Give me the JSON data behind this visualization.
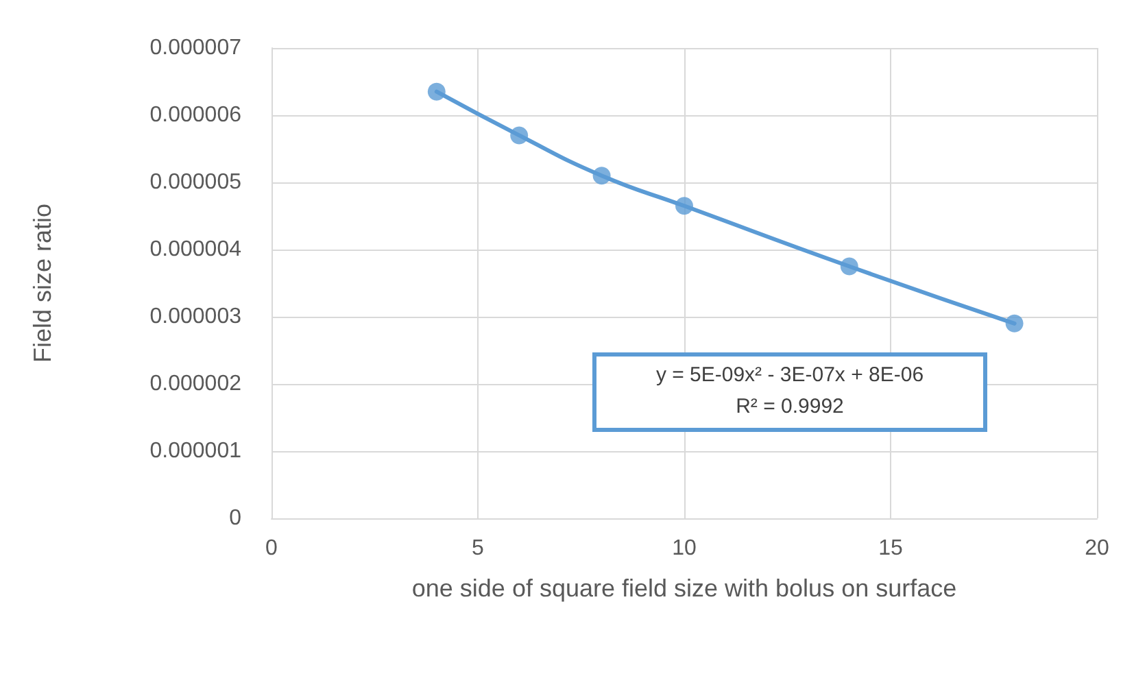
{
  "chart_data": {
    "type": "scatter",
    "xlabel": "one side of square field size with bolus on surface",
    "ylabel": "Field size ratio",
    "series": [
      {
        "type": "line",
        "color": "#5b9bd5",
        "x": [
          4,
          6,
          8,
          10,
          14,
          18
        ],
        "values": [
          6.35e-06,
          5.7e-06,
          5.1e-06,
          4.65e-06,
          3.75e-06,
          2.9e-06
        ],
        "marker": "none"
      },
      {
        "color": "#5b9bd5",
        "x": [
          4,
          6,
          8,
          10,
          14,
          18
        ],
        "values": [
          6.35e-06,
          5.7e-06,
          5.1e-06,
          4.65e-06,
          3.75e-06,
          2.9e-06
        ],
        "marker": "circle"
      }
    ],
    "xlim": [
      0,
      20
    ],
    "xticks": [
      0,
      5,
      10,
      15,
      20
    ],
    "ylim": [
      0,
      7e-06
    ],
    "yticks": [
      0,
      {
        "value": 1e-06,
        "label": "0.000001"
      },
      {
        "value": 2e-06,
        "label": "0.000002"
      },
      {
        "value": 3e-06,
        "label": "0.000003"
      },
      {
        "value": 4e-06,
        "label": "0.000004"
      },
      {
        "value": 5e-06,
        "label": "0.000005"
      },
      {
        "value": 6e-06,
        "label": "0.000006"
      },
      {
        "value": 7e-06,
        "label": "0.000007"
      }
    ],
    "grid": true,
    "annotations": [
      "y = 5E-09x² - 3E-07x + 8E-06",
      "R² = 0.9992"
    ]
  }
}
